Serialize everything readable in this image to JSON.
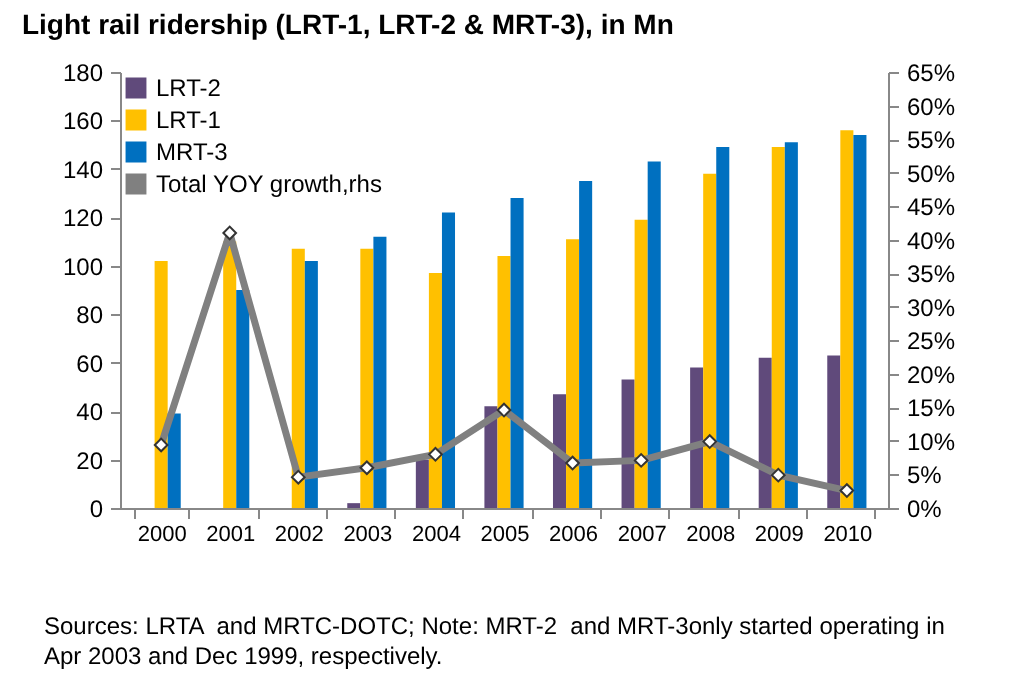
{
  "chart_data": {
    "type": "bar",
    "title": "Light rail ridership (LRT-1, LRT-2 & MRT-3), in Mn",
    "categories": [
      "2000",
      "2001",
      "2002",
      "2003",
      "2004",
      "2005",
      "2006",
      "2007",
      "2008",
      "2009",
      "2010"
    ],
    "series": [
      {
        "name": "LRT-2",
        "color": "#604a7b",
        "values": [
          null,
          null,
          null,
          2,
          20,
          42,
          47,
          53,
          58,
          62,
          63
        ]
      },
      {
        "name": "LRT-1",
        "color": "#ffc000",
        "values": [
          102,
          110,
          107,
          107,
          97,
          104,
          111,
          119,
          138,
          149,
          156
        ]
      },
      {
        "name": "MRT-3",
        "color": "#0070c0",
        "values": [
          39,
          90,
          102,
          112,
          122,
          128,
          135,
          143,
          149,
          151,
          154
        ]
      },
      {
        "name": "Total YOY  growth,rhs",
        "type": "line",
        "axis": "y2",
        "color": "#808080",
        "marker": "diamond",
        "line_style": "solid",
        "values": [
          9.4,
          41,
          4.6,
          6,
          8,
          14.6,
          6.7,
          7.1,
          9.9,
          4.9,
          2.6
        ]
      }
    ],
    "ylim": [
      0,
      180
    ],
    "yticks": [
      0,
      20,
      40,
      60,
      80,
      100,
      120,
      140,
      160,
      180
    ],
    "y2lim": [
      0,
      65
    ],
    "y2ticks": [
      {
        "value": 0,
        "label": "0%"
      },
      {
        "value": 5,
        "label": "5%"
      },
      {
        "value": 10,
        "label": "10%"
      },
      {
        "value": 15,
        "label": "15%"
      },
      {
        "value": 20,
        "label": "20%"
      },
      {
        "value": 25,
        "label": "25%"
      },
      {
        "value": 30,
        "label": "30%"
      },
      {
        "value": 35,
        "label": "35%"
      },
      {
        "value": 40,
        "label": "40%"
      },
      {
        "value": 45,
        "label": "45%"
      },
      {
        "value": 50,
        "label": "50%"
      },
      {
        "value": 55,
        "label": "55%"
      },
      {
        "value": 60,
        "label": "60%"
      },
      {
        "value": 65,
        "label": "65%"
      }
    ],
    "grid": false,
    "legend": "top left",
    "annotations": [
      "Sources: LRTA  and MRTC-DOTC; Note: MRT-2  and MRT-3only started operating in Apr 2003 and Dec 1999, respectively."
    ]
  }
}
